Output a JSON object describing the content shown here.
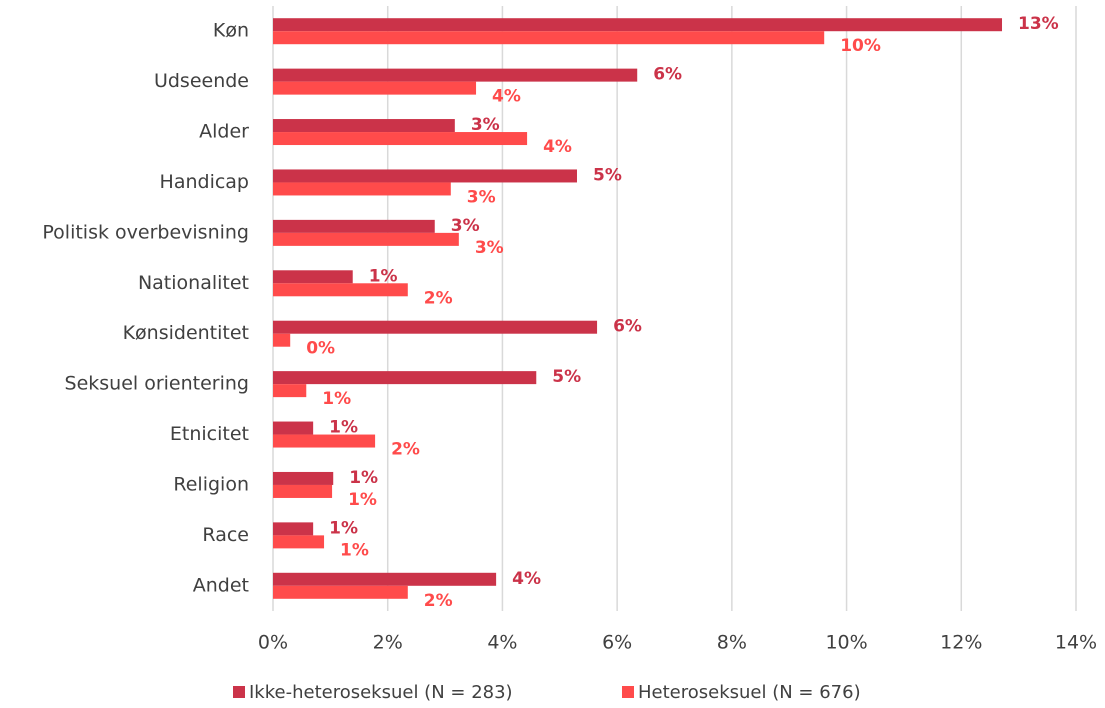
{
  "chart_data": {
    "type": "hbar",
    "categories": [
      "Køn",
      "Udseende",
      "Alder",
      "Handicap",
      "Politisk overbevisning",
      "Nationalitet",
      "Kønsidentitet",
      "Seksuel orientering",
      "Etnicitet",
      "Religion",
      "Race",
      "Andet"
    ],
    "series": [
      {
        "name": "Ikke-heteroseksuel (N = 283)",
        "color": "#cb3349",
        "values": [
          12.71,
          6.35,
          3.17,
          5.3,
          2.82,
          1.39,
          5.65,
          4.59,
          0.7,
          1.05,
          0.7,
          3.89
        ],
        "value_labels": [
          "13%",
          "6%",
          "3%",
          "5%",
          "3%",
          "1%",
          "6%",
          "5%",
          "1%",
          "1%",
          "1%",
          "4%"
        ]
      },
      {
        "name": "Heteroseksuel (N = 676)",
        "color": "#ff4b4b",
        "values": [
          9.61,
          3.54,
          4.43,
          3.1,
          3.24,
          2.35,
          0.3,
          0.58,
          1.78,
          1.03,
          0.89,
          2.35
        ],
        "value_labels": [
          "10%",
          "4%",
          "4%",
          "3%",
          "3%",
          "2%",
          "0%",
          "1%",
          "2%",
          "1%",
          "1%",
          "2%"
        ]
      }
    ],
    "xlim": [
      0,
      14
    ],
    "xticks": [
      {
        "value": 0,
        "label": "0%"
      },
      {
        "value": 2,
        "label": "2%"
      },
      {
        "value": 4,
        "label": "4%"
      },
      {
        "value": 6,
        "label": "6%"
      },
      {
        "value": 8,
        "label": "8%"
      },
      {
        "value": 10,
        "label": "10%"
      },
      {
        "value": 12,
        "label": "12%"
      },
      {
        "value": 14,
        "label": "14%"
      }
    ],
    "grid": true,
    "legend": "bottom"
  }
}
